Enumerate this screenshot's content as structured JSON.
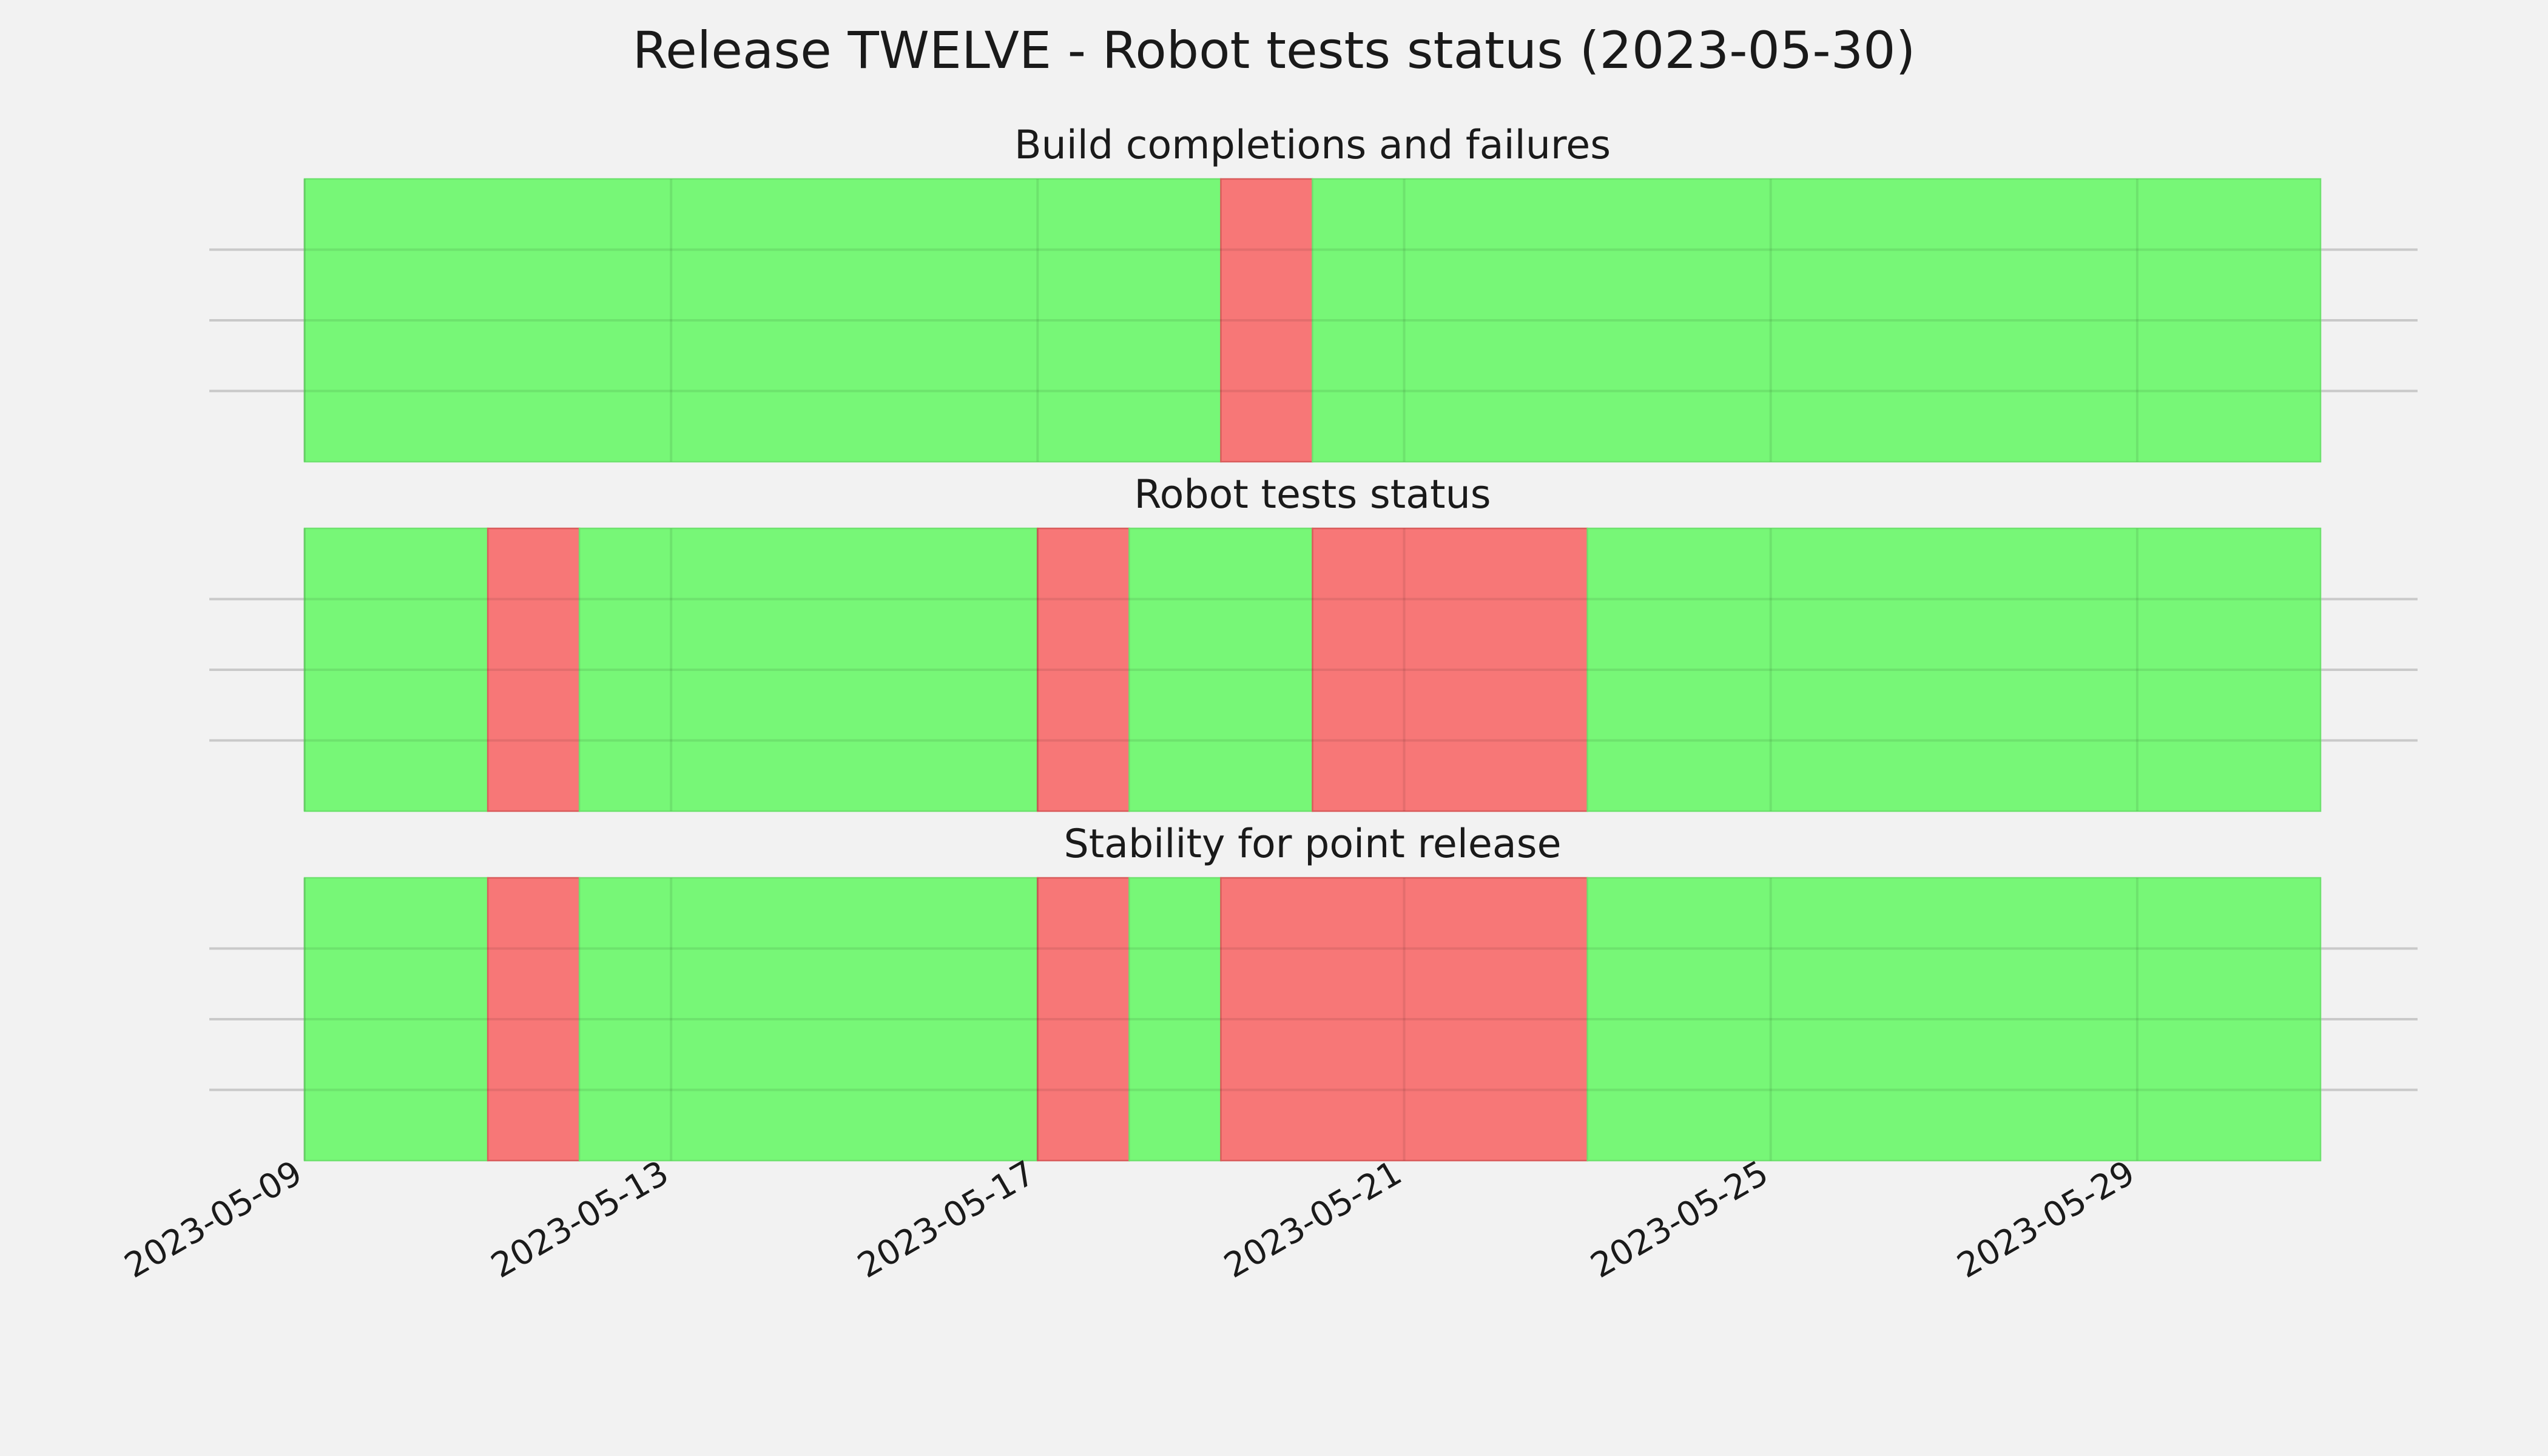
{
  "chart_data": {
    "type": "timeline",
    "title": "Release TWELVE - Robot tests status (2023-05-30)",
    "x_range": [
      "2023-05-09",
      "2023-05-31"
    ],
    "x_ticks": [
      "2023-05-09",
      "2023-05-13",
      "2023-05-17",
      "2023-05-21",
      "2023-05-25",
      "2023-05-29"
    ],
    "grid": true,
    "colors": {
      "pass": "#77f777",
      "fail": "#f77777",
      "background": "#f2f2f2"
    },
    "panels": [
      {
        "title": "Build completions and failures",
        "segments": [
          {
            "start": "2023-05-09",
            "end": "2023-05-19",
            "status": "pass"
          },
          {
            "start": "2023-05-19",
            "end": "2023-05-20",
            "status": "fail"
          },
          {
            "start": "2023-05-20",
            "end": "2023-05-31",
            "status": "pass"
          }
        ]
      },
      {
        "title": "Robot tests status",
        "segments": [
          {
            "start": "2023-05-09",
            "end": "2023-05-11",
            "status": "pass"
          },
          {
            "start": "2023-05-11",
            "end": "2023-05-12",
            "status": "fail"
          },
          {
            "start": "2023-05-12",
            "end": "2023-05-17",
            "status": "pass"
          },
          {
            "start": "2023-05-17",
            "end": "2023-05-18",
            "status": "fail"
          },
          {
            "start": "2023-05-18",
            "end": "2023-05-20",
            "status": "pass"
          },
          {
            "start": "2023-05-20",
            "end": "2023-05-23",
            "status": "fail"
          },
          {
            "start": "2023-05-23",
            "end": "2023-05-31",
            "status": "pass"
          }
        ]
      },
      {
        "title": "Stability for point release",
        "segments": [
          {
            "start": "2023-05-09",
            "end": "2023-05-11",
            "status": "pass"
          },
          {
            "start": "2023-05-11",
            "end": "2023-05-12",
            "status": "fail"
          },
          {
            "start": "2023-05-12",
            "end": "2023-05-17",
            "status": "pass"
          },
          {
            "start": "2023-05-17",
            "end": "2023-05-18",
            "status": "fail"
          },
          {
            "start": "2023-05-18",
            "end": "2023-05-19",
            "status": "pass"
          },
          {
            "start": "2023-05-19",
            "end": "2023-05-23",
            "status": "fail"
          },
          {
            "start": "2023-05-23",
            "end": "2023-05-31",
            "status": "pass"
          }
        ]
      }
    ]
  }
}
